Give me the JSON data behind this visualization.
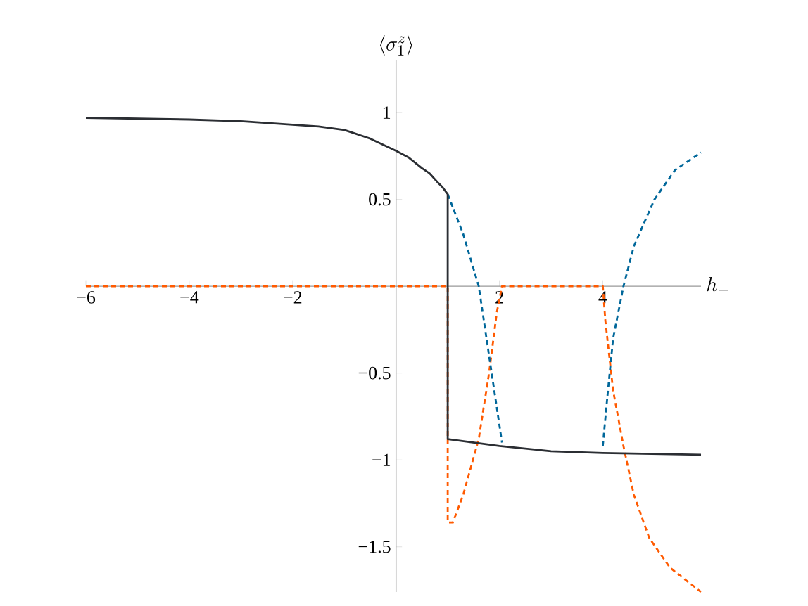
{
  "chart_data": {
    "type": "line",
    "xlabel": "h_-",
    "ylabel": "\\langle \\sigma_1^z \\rangle",
    "xlim": [
      -6,
      5.9
    ],
    "ylim": [
      -1.76,
      1.3
    ],
    "xticks": [
      {
        "value": -6,
        "label": "−6"
      },
      {
        "value": -4,
        "label": "−4"
      },
      {
        "value": -2,
        "label": "−2"
      },
      2,
      4
    ],
    "yticks": [
      {
        "value": -1.5,
        "label": "−1.5"
      },
      {
        "value": -1,
        "label": "−1"
      },
      {
        "value": -0.5,
        "label": "−0.5"
      },
      0.5,
      1
    ],
    "marker": "none",
    "series": [
      {
        "color": "#ff5a00",
        "line_style": "dashed",
        "x": [
          -6,
          1,
          1,
          1.1,
          1.3,
          1.6,
          1.8,
          1.95,
          2.05,
          4,
          4.05,
          4.2,
          4.4,
          4.6,
          4.9,
          5.3,
          5.9
        ],
        "values": [
          0,
          0,
          -1.36,
          -1.36,
          -1.2,
          -0.88,
          -0.5,
          -0.15,
          0,
          0,
          -0.2,
          -0.6,
          -0.92,
          -1.2,
          -1.45,
          -1.62,
          -1.76
        ]
      },
      {
        "color": "#00679a",
        "line_style": "dashed",
        "x": [
          1,
          1.3,
          1.6,
          1.8,
          2.05,
          3,
          4,
          4.1,
          4.2,
          4.4,
          4.6,
          5,
          5.4,
          5.9
        ],
        "values": [
          0.53,
          0.3,
          0,
          -0.4,
          -0.9,
          null,
          -0.92,
          -0.6,
          -0.3,
          0,
          0.23,
          0.5,
          0.67,
          0.77
        ]
      },
      {
        "color": "#2b2e33",
        "line_style": "solid",
        "x": [
          -6,
          -4,
          -3,
          -2,
          -1.5,
          -1,
          -0.5,
          0,
          0.25,
          0.5,
          0.65,
          0.8,
          0.9,
          1,
          1,
          2,
          3,
          4,
          5.9
        ],
        "values": [
          0.97,
          0.96,
          0.95,
          0.93,
          0.92,
          0.9,
          0.85,
          0.78,
          0.74,
          0.68,
          0.65,
          0.6,
          0.57,
          0.53,
          -0.88,
          -0.92,
          -0.95,
          -0.96,
          -0.97
        ]
      }
    ]
  }
}
